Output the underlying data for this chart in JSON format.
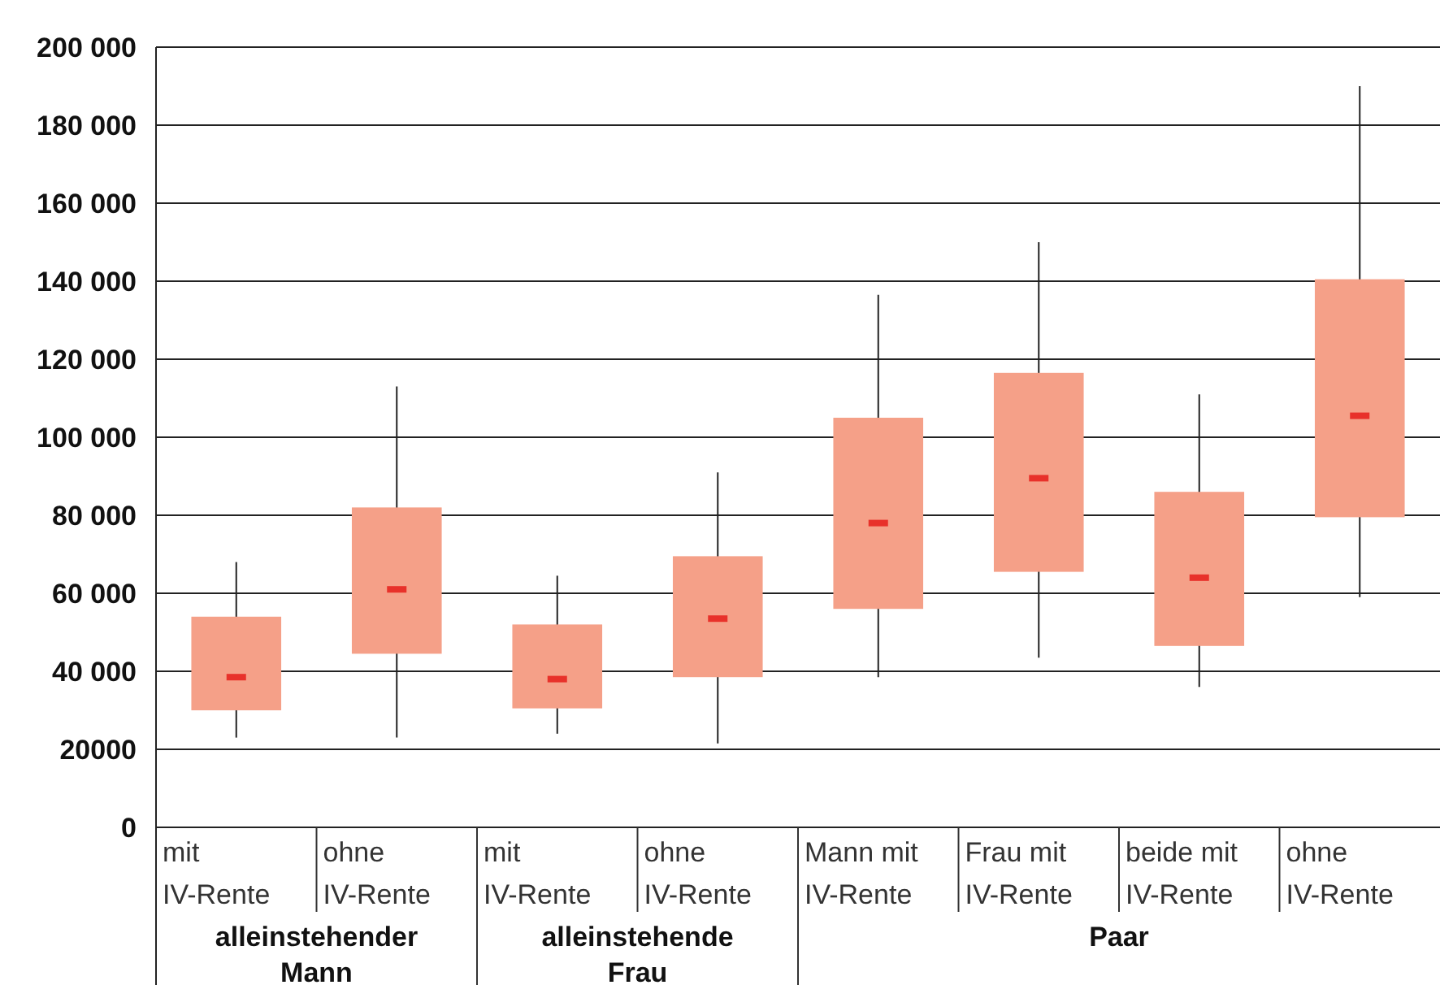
{
  "chart_data": {
    "type": "box",
    "categories": [
      "mit IV-Rente",
      "ohne IV-Rente",
      "mit IV-Rente",
      "ohne IV-Rente",
      "Mann mit IV-Rente",
      "Frau mit IV-Rente",
      "beide mit IV-Rente",
      "ohne IV-Rente"
    ],
    "boxes": [
      {
        "low": 23000,
        "q1": 30000,
        "median": 38500,
        "q3": 54000,
        "high": 68000
      },
      {
        "low": 23000,
        "q1": 44500,
        "median": 61000,
        "q3": 82000,
        "high": 113000
      },
      {
        "low": 24000,
        "q1": 30500,
        "median": 38000,
        "q3": 52000,
        "high": 64500
      },
      {
        "low": 21500,
        "q1": 38500,
        "median": 53500,
        "q3": 69500,
        "high": 91000
      },
      {
        "low": 38500,
        "q1": 56000,
        "median": 78000,
        "q3": 105000,
        "high": 136500
      },
      {
        "low": 43500,
        "q1": 65500,
        "median": 89500,
        "q3": 116500,
        "high": 150000
      },
      {
        "low": 36000,
        "q1": 46500,
        "median": 64000,
        "q3": 86000,
        "high": 111000
      },
      {
        "low": 59000,
        "q1": 79500,
        "median": 105500,
        "q3": 140500,
        "high": 190000
      }
    ],
    "color": "#f5a088",
    "ylim": [
      0,
      200000
    ],
    "yticks": [
      0,
      20000,
      {
        "value": 40000,
        "label": "40 000"
      },
      {
        "value": 60000,
        "label": "60 000"
      },
      {
        "value": 80000,
        "label": "80 000"
      },
      {
        "value": 100000,
        "label": "100 000"
      },
      {
        "value": 120000,
        "label": "120 000"
      },
      {
        "value": 140000,
        "label": "140 000"
      },
      {
        "value": 160000,
        "label": "160 000"
      },
      {
        "value": 180000,
        "label": "180 000"
      },
      {
        "value": 200000,
        "label": "200 000"
      }
    ],
    "grid": "y",
    "annotations": [
      "alleinstehender Mann",
      "alleinstehende Frau",
      "Paar"
    ]
  }
}
